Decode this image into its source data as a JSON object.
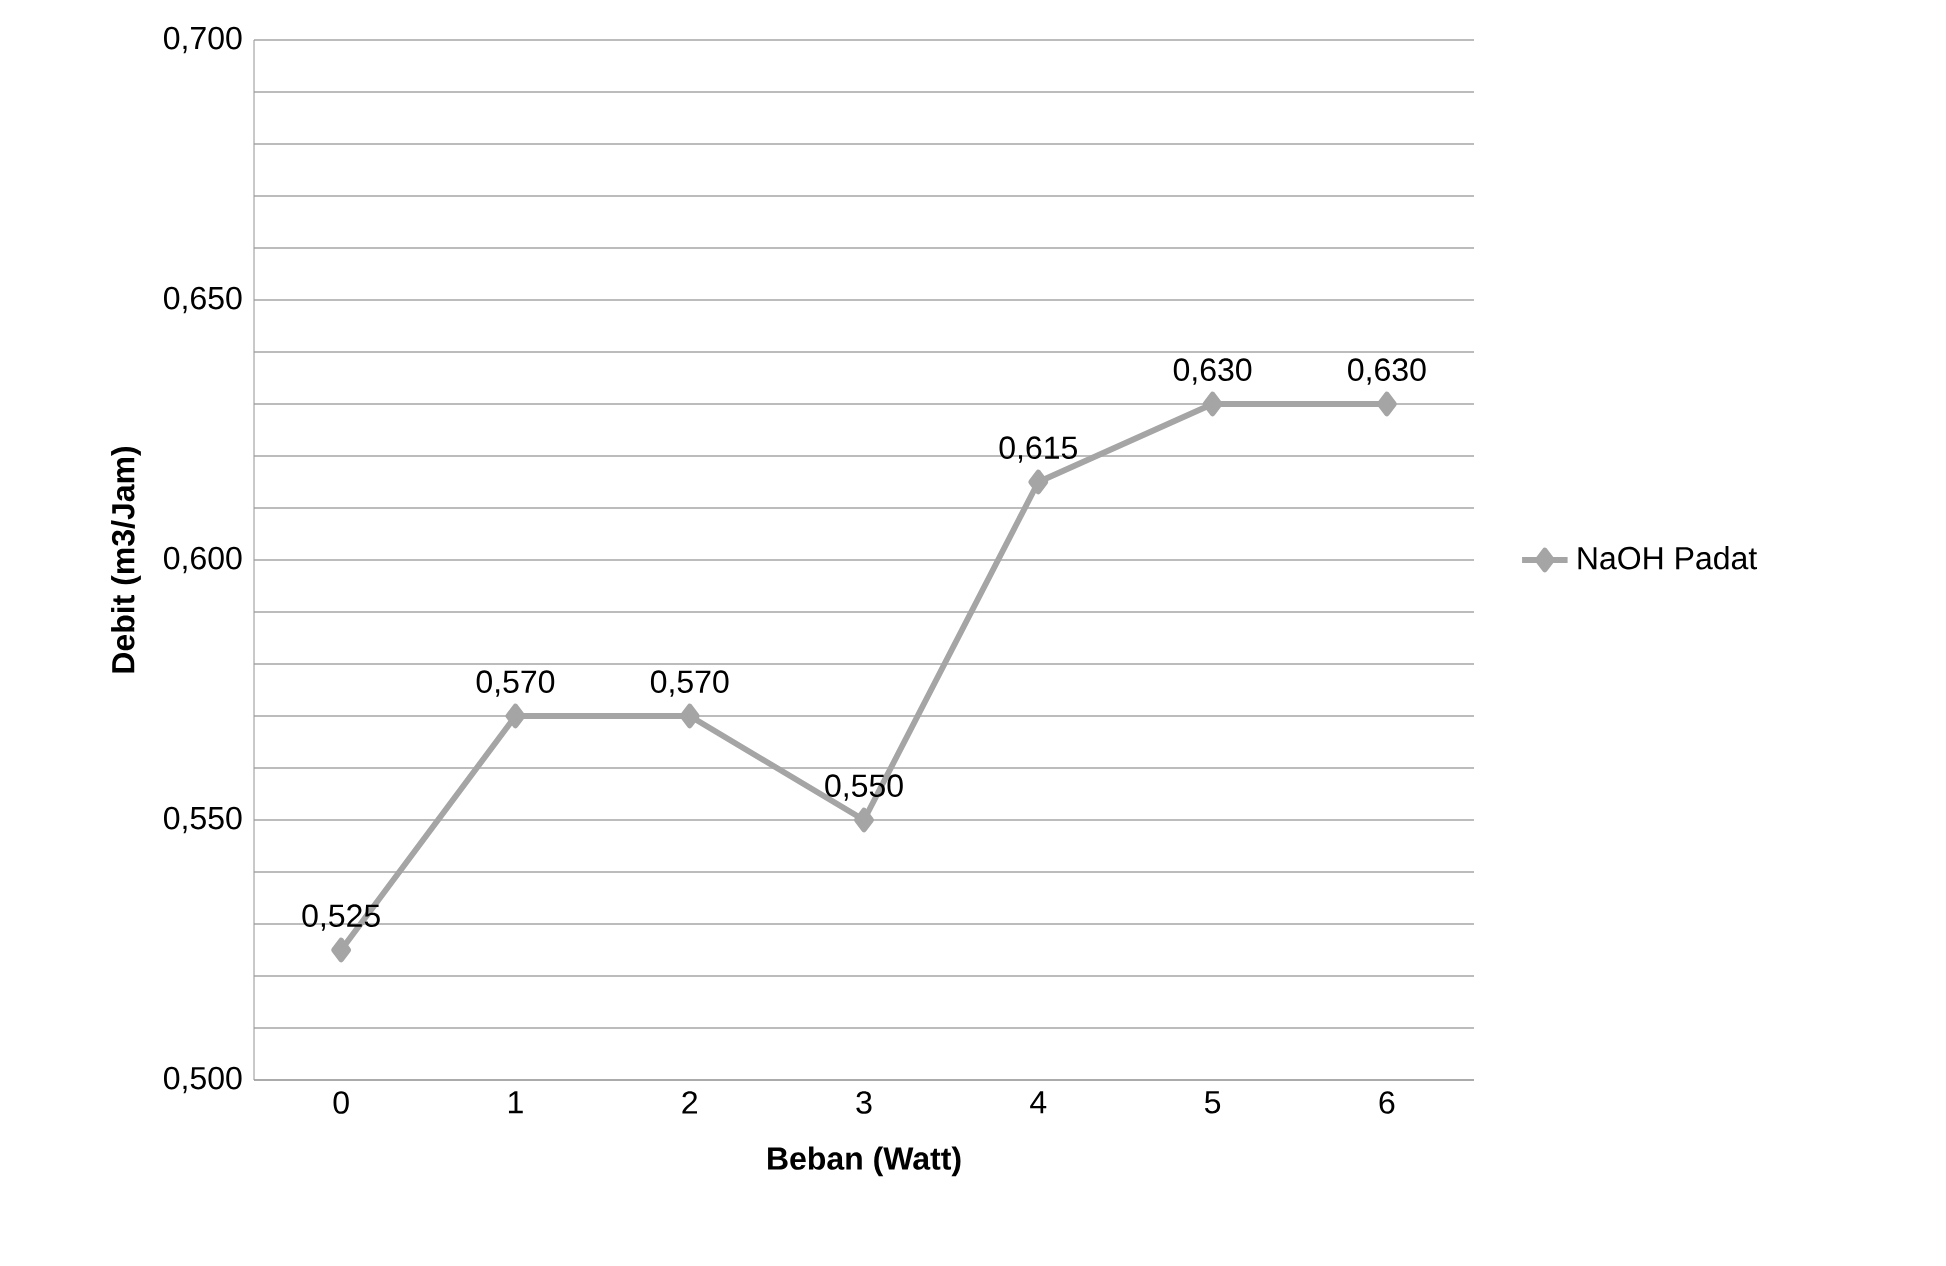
{
  "chart_data": {
    "type": "line",
    "xlabel": "Beban (Watt)",
    "ylabel": "Debit (m3/Jam)",
    "categories": [
      "0",
      "1",
      "2",
      "3",
      "4",
      "5",
      "6"
    ],
    "series": [
      {
        "name": "NaOH Padat",
        "color": "#a5a5a5",
        "values": [
          0.525,
          0.57,
          0.57,
          0.55,
          0.615,
          0.63,
          0.63
        ],
        "value_labels": [
          "0,525",
          "0,570",
          "0,570",
          "0,550",
          "0,615",
          "0,630",
          "0,630"
        ]
      }
    ],
    "ylim": [
      0.5,
      0.7
    ],
    "yticks": [
      {
        "value": 0.5,
        "label": "0,500"
      },
      {
        "value": 0.51,
        "label": null
      },
      {
        "value": 0.52,
        "label": null
      },
      {
        "value": 0.53,
        "label": null
      },
      {
        "value": 0.54,
        "label": null
      },
      {
        "value": 0.55,
        "label": "0,550"
      },
      {
        "value": 0.56,
        "label": null
      },
      {
        "value": 0.57,
        "label": null
      },
      {
        "value": 0.58,
        "label": null
      },
      {
        "value": 0.59,
        "label": null
      },
      {
        "value": 0.6,
        "label": "0,600"
      },
      {
        "value": 0.61,
        "label": null
      },
      {
        "value": 0.62,
        "label": null
      },
      {
        "value": 0.63,
        "label": null
      },
      {
        "value": 0.64,
        "label": null
      },
      {
        "value": 0.65,
        "label": "0,650"
      },
      {
        "value": 0.66,
        "label": null
      },
      {
        "value": 0.67,
        "label": null
      },
      {
        "value": 0.68,
        "label": null
      },
      {
        "value": 0.69,
        "label": null
      },
      {
        "value": 0.7,
        "label": "0,700"
      }
    ],
    "grid": "y",
    "legend": "right",
    "marker": "diamond",
    "line_style": "solid"
  }
}
